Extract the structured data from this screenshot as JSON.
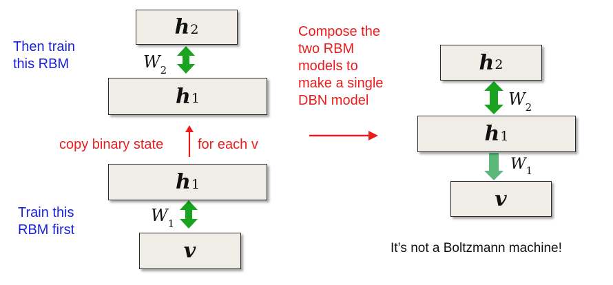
{
  "left_top": {
    "note": "Then train\nthis RBM",
    "upper_unit": {
      "symbol": "h",
      "sub": "2"
    },
    "lower_unit": {
      "symbol": "h",
      "sub": "1"
    },
    "weight": {
      "symbol": "W",
      "sub": "2"
    }
  },
  "copy_label_left": "copy binary state",
  "copy_label_right": "for each v",
  "left_bottom": {
    "note": "Train this\nRBM first",
    "upper_unit": {
      "symbol": "h",
      "sub": "1"
    },
    "lower_unit": {
      "symbol": "v",
      "sub": ""
    },
    "weight": {
      "symbol": "W",
      "sub": "1"
    }
  },
  "compose_note": "Compose the\ntwo RBM\nmodels to\nmake a single\nDBN model",
  "right": {
    "top_unit": {
      "symbol": "h",
      "sub": "2"
    },
    "mid_unit": {
      "symbol": "h",
      "sub": "1"
    },
    "bottom_unit": {
      "symbol": "v",
      "sub": ""
    },
    "upper_weight": {
      "symbol": "W",
      "sub": "2"
    },
    "lower_weight": {
      "symbol": "W",
      "sub": "1"
    }
  },
  "footer_note": "It’s not a Boltzmann machine!",
  "colors": {
    "blue_text": "#1a22d8",
    "red_text": "#ea1d1d",
    "undirected_arrow": "#19a31f",
    "directed_arrow": "#5cb87a",
    "box_fill": "#f0ede6"
  }
}
